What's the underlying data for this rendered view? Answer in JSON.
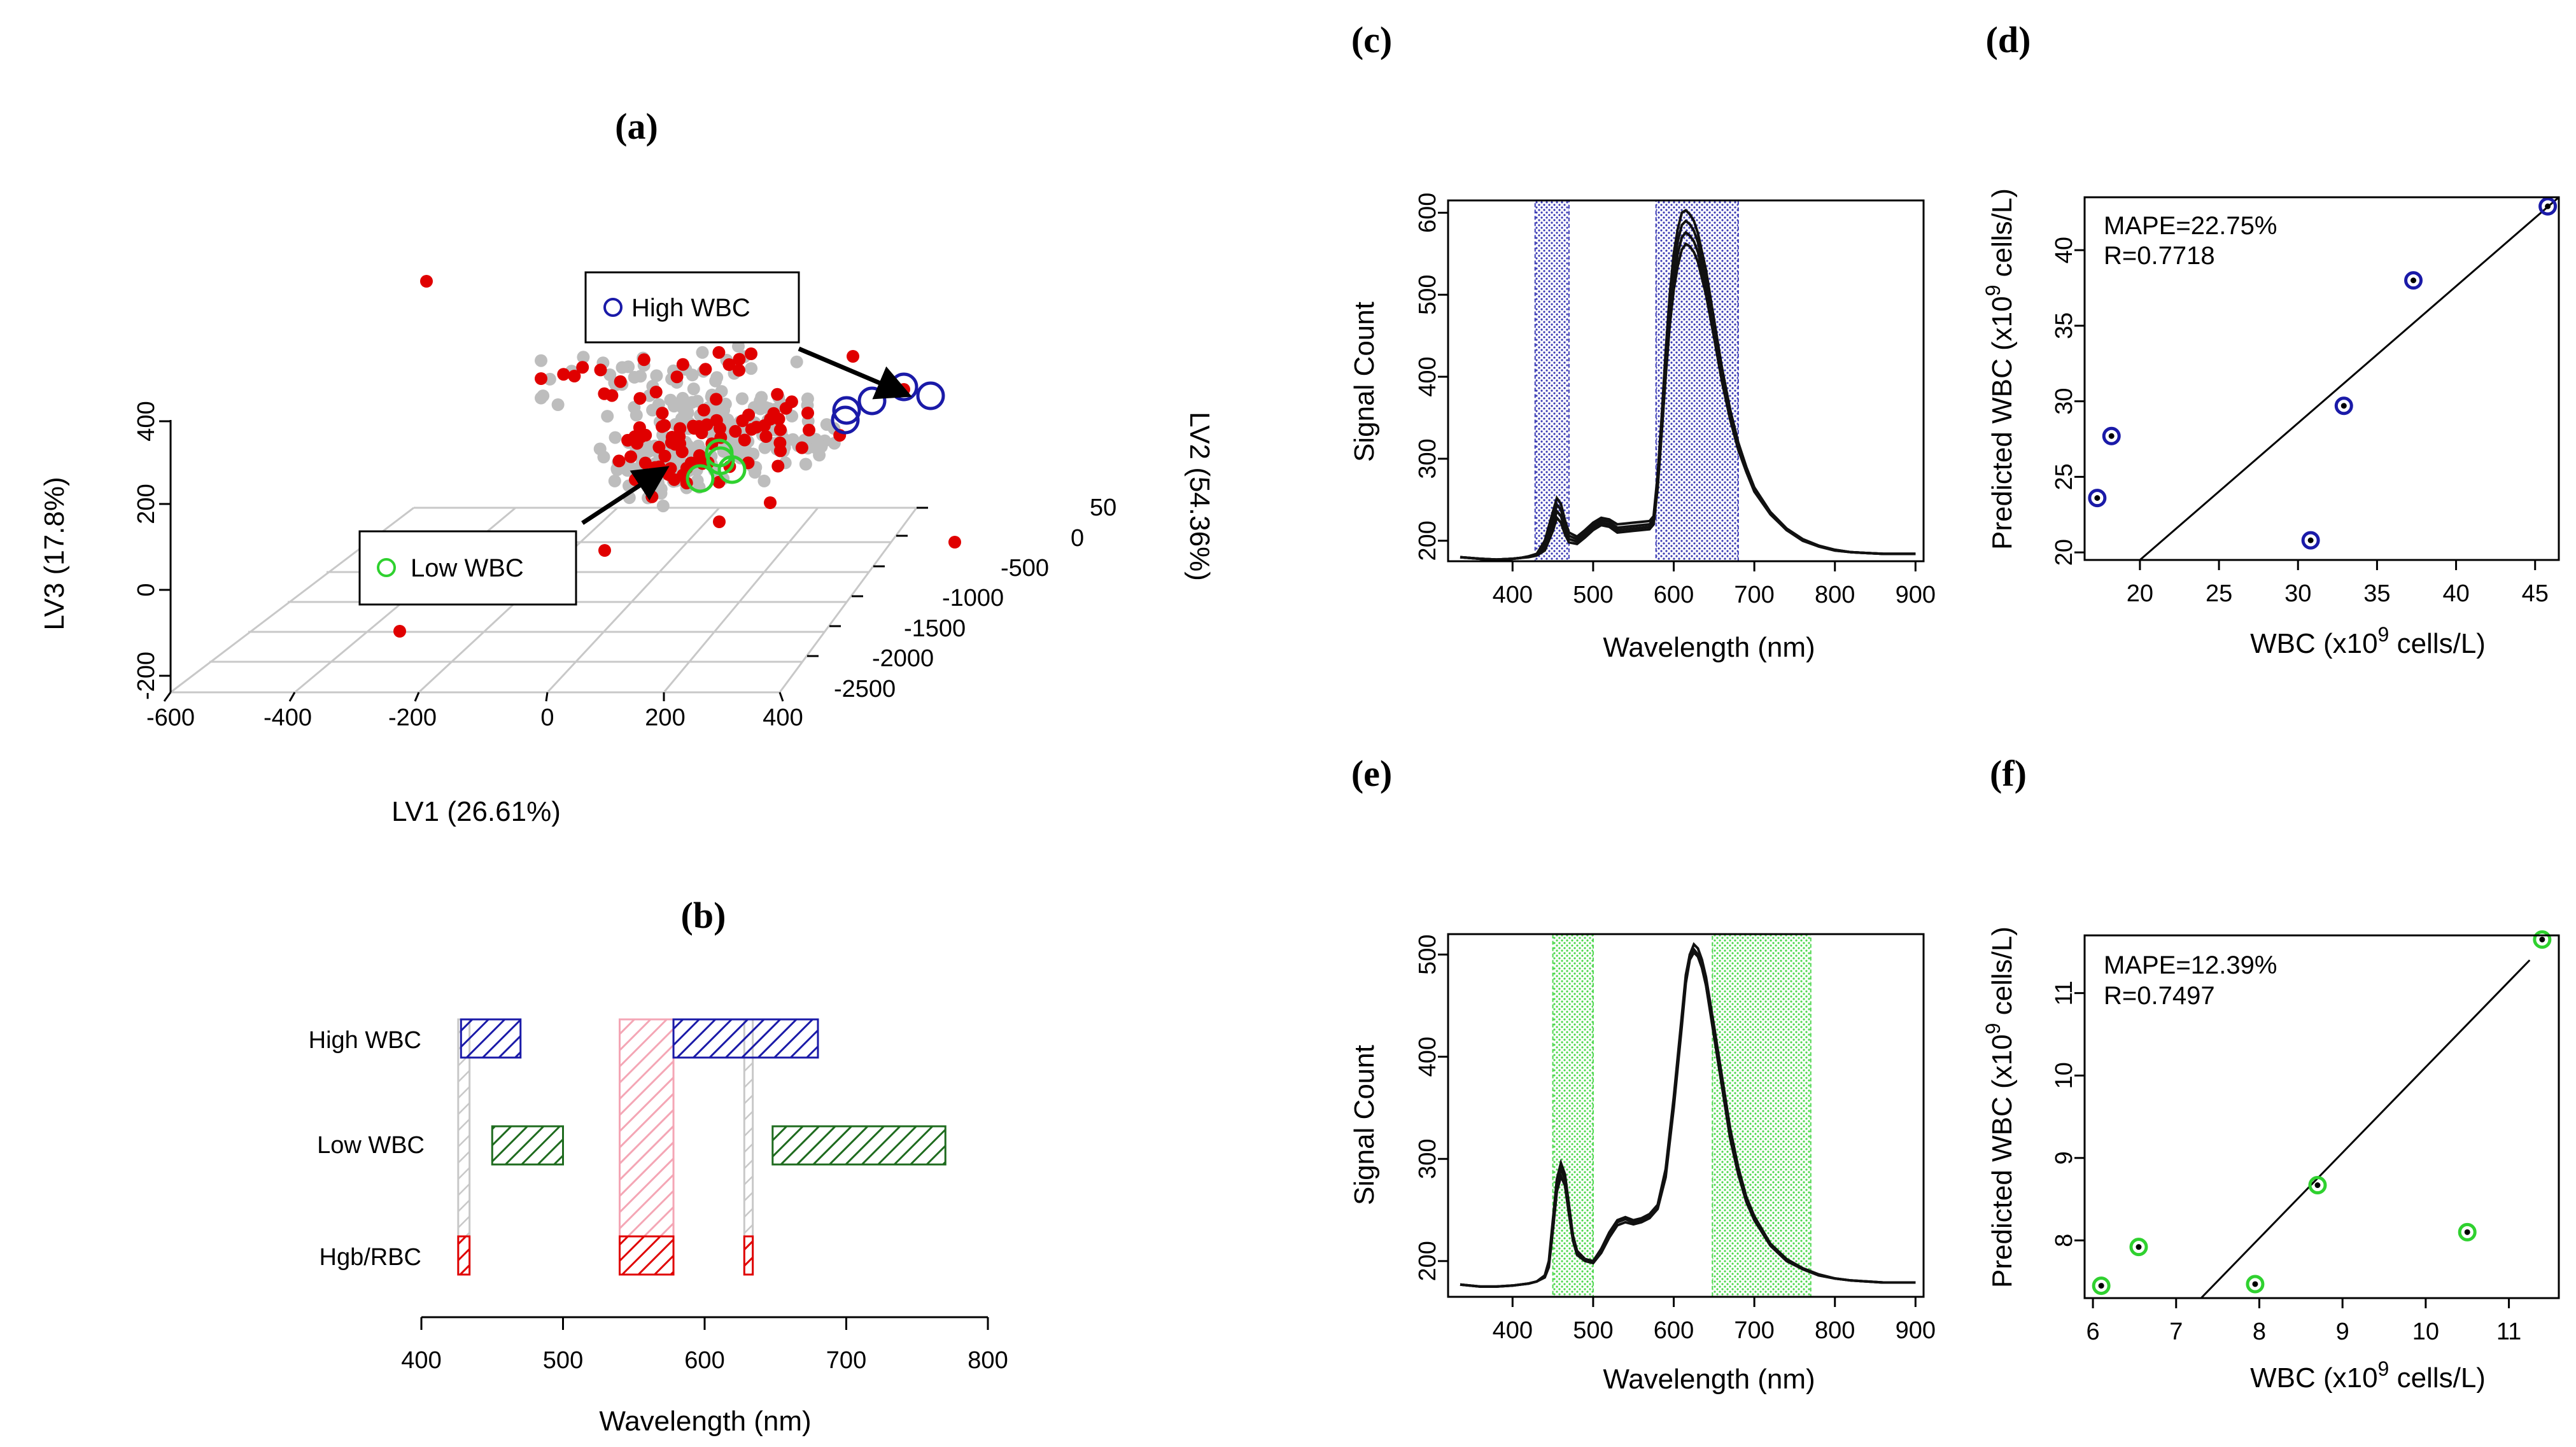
{
  "panels": {
    "a": "(a)",
    "b": "(b)",
    "c": "(c)",
    "d": "(d)",
    "e": "(e)",
    "f": "(f)"
  },
  "colors": {
    "blue": "#1a1aa8",
    "green": "#2fd12f",
    "red": "#e00000",
    "gray": "#bdbdbd",
    "dark_green": "#1e6b1e",
    "pink": "#f4a6b5",
    "light_blue_band": "#5555cc",
    "light_green_band": "#66dd66"
  },
  "chart_data": [
    {
      "id": "a",
      "type": "scatter",
      "title": "(a)",
      "xlabel": "LV1 (26.61%)",
      "ylabel": "LV3 (17.8%)",
      "zlabel": "LV2 (54.36%)",
      "x_ticks": [
        "-600",
        "-400",
        "-200",
        "0",
        "200",
        "400"
      ],
      "y_ticks": [
        "400",
        "200",
        "0",
        "-200"
      ],
      "z_ticks": [
        "50",
        "0",
        "-500",
        "-1000",
        "-1500",
        "-2000",
        "-2500"
      ],
      "legend": [
        {
          "label": "High WBC",
          "marker": "open-circle",
          "color": "#1a1aa8"
        },
        {
          "label": "Low WBC",
          "marker": "open-circle",
          "color": "#2fd12f"
        }
      ]
    },
    {
      "id": "b",
      "type": "bar",
      "title": "(b)",
      "xlabel": "Wavelength (nm)",
      "x_ticks": [
        "400",
        "500",
        "600",
        "700",
        "800"
      ],
      "xlim": [
        400,
        800
      ],
      "categories": [
        "High WBC",
        "Low WBC",
        "Hgb/RBC"
      ],
      "series": [
        {
          "name": "High WBC",
          "color": "#1a1aa8",
          "intervals": [
            [
              428,
              470
            ],
            [
              578,
              680
            ]
          ]
        },
        {
          "name": "Low WBC",
          "color": "#1e6b1e",
          "intervals": [
            [
              450,
              500
            ],
            [
              648,
              770
            ]
          ]
        },
        {
          "name": "Hgb/RBC",
          "color": "#e00000",
          "intervals": [
            [
              426,
              434
            ],
            [
              540,
              578
            ],
            [
              628,
              634
            ]
          ]
        }
      ],
      "unselected": [
        {
          "row": "High WBC",
          "intervals": [
            [
              426,
              434
            ],
            [
              540,
              578
            ],
            [
              628,
              634
            ]
          ]
        }
      ]
    },
    {
      "id": "c",
      "type": "line",
      "title": "(c)",
      "xlabel": "Wavelength (nm)",
      "ylabel": "Signal Count",
      "xlim": [
        320,
        910
      ],
      "ylim": [
        175,
        615
      ],
      "x_ticks": [
        400,
        500,
        600,
        700,
        800,
        900
      ],
      "y_ticks": [
        200,
        300,
        400,
        500,
        600
      ],
      "bands": [
        [
          428,
          470
        ],
        [
          578,
          680
        ]
      ],
      "band_color": "#1a1aa8",
      "x": [
        335,
        360,
        380,
        400,
        410,
        420,
        430,
        440,
        450,
        455,
        460,
        465,
        470,
        480,
        490,
        500,
        510,
        520,
        530,
        540,
        550,
        560,
        570,
        575,
        580,
        585,
        590,
        595,
        600,
        605,
        610,
        615,
        620,
        625,
        630,
        640,
        650,
        660,
        670,
        680,
        690,
        700,
        720,
        740,
        760,
        780,
        800,
        820,
        840,
        860,
        880,
        900
      ],
      "series": [
        {
          "name": "s1",
          "values": [
            180,
            178,
            177,
            178,
            179,
            181,
            184,
            200,
            235,
            252,
            245,
            225,
            210,
            205,
            213,
            222,
            228,
            226,
            220,
            221,
            222,
            223,
            224,
            230,
            280,
            350,
            430,
            500,
            550,
            580,
            600,
            603,
            598,
            590,
            575,
            530,
            470,
            410,
            360,
            320,
            290,
            265,
            235,
            215,
            202,
            194,
            189,
            186,
            185,
            184,
            184,
            184
          ]
        },
        {
          "name": "s2",
          "values": [
            180,
            178,
            177,
            178,
            179,
            181,
            184,
            196,
            228,
            244,
            238,
            220,
            206,
            202,
            210,
            219,
            225,
            223,
            216,
            217,
            218,
            219,
            220,
            226,
            275,
            345,
            420,
            488,
            535,
            565,
            585,
            590,
            586,
            578,
            564,
            520,
            462,
            404,
            356,
            317,
            288,
            263,
            234,
            214,
            201,
            194,
            189,
            186,
            185,
            184,
            184,
            184
          ]
        },
        {
          "name": "s3",
          "values": [
            180,
            178,
            177,
            178,
            179,
            181,
            183,
            192,
            220,
            236,
            230,
            214,
            202,
            199,
            207,
            216,
            222,
            220,
            213,
            214,
            215,
            216,
            217,
            223,
            270,
            338,
            410,
            475,
            520,
            550,
            570,
            576,
            572,
            565,
            552,
            510,
            455,
            398,
            352,
            314,
            286,
            262,
            233,
            213,
            201,
            193,
            188,
            186,
            185,
            184,
            184,
            184
          ]
        },
        {
          "name": "s4",
          "values": [
            180,
            178,
            177,
            178,
            179,
            180,
            182,
            188,
            212,
            228,
            222,
            208,
            198,
            196,
            204,
            213,
            219,
            217,
            210,
            211,
            212,
            213,
            214,
            220,
            264,
            330,
            400,
            462,
            506,
            535,
            555,
            562,
            559,
            552,
            540,
            500,
            448,
            393,
            348,
            311,
            284,
            260,
            232,
            213,
            200,
            193,
            188,
            186,
            185,
            184,
            184,
            184
          ]
        }
      ]
    },
    {
      "id": "d",
      "type": "scatter",
      "title": "(d)",
      "xlabel": "WBC (x10",
      "xlabel_sup": "9",
      "xlabel_tail": " cells/L)",
      "ylabel": "Predicted WBC (x10",
      "ylabel_sup": "9",
      "ylabel_tail": " cells/L)",
      "xlim": [
        16.5,
        46.5
      ],
      "ylim": [
        19.5,
        43.5
      ],
      "x_ticks": [
        20,
        25,
        30,
        35,
        40,
        45
      ],
      "y_ticks": [
        20,
        25,
        30,
        35,
        40
      ],
      "annotations": [
        "MAPE=22.75%",
        "R=0.7718"
      ],
      "marker_color": "#1a1aa8",
      "x": [
        17.3,
        18.2,
        30.8,
        32.9,
        37.3,
        45.8
      ],
      "y": [
        23.6,
        27.7,
        20.8,
        29.7,
        38.0,
        42.9
      ],
      "fit_line": [
        [
          20,
          19.5
        ],
        [
          46.5,
          43.5
        ]
      ]
    },
    {
      "id": "e",
      "type": "line",
      "title": "(e)",
      "xlabel": "Wavelength (nm)",
      "ylabel": "Signal Count",
      "xlim": [
        320,
        910
      ],
      "ylim": [
        165,
        520
      ],
      "x_ticks": [
        400,
        500,
        600,
        700,
        800,
        900
      ],
      "y_ticks": [
        200,
        300,
        400,
        500
      ],
      "bands": [
        [
          450,
          500
        ],
        [
          648,
          770
        ]
      ],
      "band_color": "#2fd12f",
      "x": [
        335,
        360,
        380,
        400,
        420,
        430,
        440,
        445,
        450,
        455,
        460,
        465,
        470,
        475,
        480,
        490,
        500,
        510,
        520,
        530,
        540,
        550,
        560,
        570,
        580,
        590,
        600,
        610,
        615,
        620,
        625,
        630,
        635,
        640,
        650,
        660,
        670,
        680,
        690,
        700,
        720,
        740,
        760,
        780,
        800,
        820,
        840,
        860,
        880,
        900
      ],
      "series": [
        {
          "name": "s1",
          "values": [
            177,
            175,
            175,
            176,
            178,
            180,
            186,
            200,
            240,
            280,
            296,
            285,
            255,
            225,
            210,
            202,
            200,
            212,
            228,
            240,
            243,
            240,
            242,
            246,
            255,
            290,
            360,
            440,
            480,
            500,
            505,
            500,
            488,
            470,
            420,
            370,
            320,
            285,
            258,
            240,
            215,
            200,
            192,
            186,
            183,
            181,
            180,
            179,
            179,
            179
          ]
        },
        {
          "name": "s2",
          "values": [
            177,
            175,
            175,
            176,
            178,
            180,
            185,
            197,
            235,
            275,
            290,
            280,
            250,
            222,
            208,
            201,
            199,
            210,
            226,
            238,
            241,
            238,
            240,
            244,
            253,
            286,
            355,
            436,
            478,
            500,
            510,
            506,
            495,
            478,
            430,
            380,
            330,
            292,
            263,
            244,
            217,
            202,
            193,
            187,
            183,
            181,
            180,
            179,
            179,
            179
          ]
        },
        {
          "name": "s3",
          "values": [
            177,
            175,
            175,
            176,
            178,
            180,
            184,
            194,
            230,
            268,
            283,
            274,
            246,
            220,
            206,
            200,
            198,
            208,
            223,
            235,
            238,
            236,
            238,
            242,
            251,
            282,
            350,
            430,
            472,
            495,
            502,
            498,
            487,
            470,
            424,
            375,
            326,
            289,
            261,
            242,
            216,
            201,
            192,
            186,
            183,
            181,
            180,
            179,
            179,
            179
          ]
        }
      ]
    },
    {
      "id": "f",
      "type": "scatter",
      "title": "(f)",
      "xlabel": "WBC (x10",
      "xlabel_sup": "9",
      "xlabel_tail": " cells/L)",
      "ylabel": "Predicted WBC (x10",
      "ylabel_sup": "9",
      "ylabel_tail": " cells/L)",
      "xlim": [
        5.9,
        11.6
      ],
      "ylim": [
        7.3,
        11.7
      ],
      "x_ticks": [
        6,
        7,
        8,
        9,
        10,
        11
      ],
      "y_ticks": [
        8,
        9,
        10,
        11
      ],
      "annotations": [
        "MAPE=12.39%",
        "R=0.7497"
      ],
      "marker_color": "#2fd12f",
      "x": [
        6.1,
        6.55,
        7.95,
        8.7,
        10.5,
        11.4
      ],
      "y": [
        7.45,
        7.92,
        7.47,
        8.67,
        8.1,
        11.65
      ],
      "fit_line": [
        [
          7.3,
          7.3
        ],
        [
          11.25,
          11.4
        ]
      ]
    }
  ]
}
